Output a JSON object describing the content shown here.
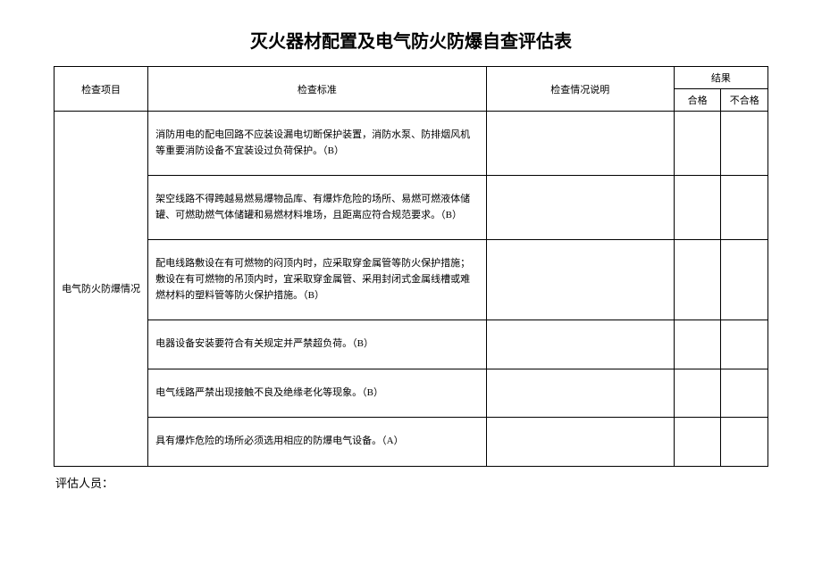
{
  "title": "灭火器材配置及电气防火防爆自查评估表",
  "header": {
    "item": "检查项目",
    "standard": "检查标准",
    "description": "检查情况说明",
    "result": "结果",
    "pass": "合格",
    "fail": "不合格"
  },
  "category": "电气防火防爆情况",
  "rows": [
    {
      "standard": "消防用电的配电回路不应装设漏电切断保护装置，消防水泵、防排烟风机等重要消防设备不宜装设过负荷保护。（B）",
      "description": "",
      "pass": "",
      "fail": ""
    },
    {
      "standard": "架空线路不得跨越易燃易爆物品库、有爆炸危险的场所、易燃可燃液体储罐、可燃助燃气体储罐和易燃材料堆场，且距离应符合规范要求。（B）",
      "description": "",
      "pass": "",
      "fail": ""
    },
    {
      "standard": "配电线路敷设在有可燃物的闷顶内时，应采取穿金属管等防火保护措施；敷设在有可燃物的吊顶内时，宜采取穿金属管、采用封闭式金属线槽或难燃材料的塑料管等防火保护措施。（B）",
      "description": "",
      "pass": "",
      "fail": ""
    },
    {
      "standard": "电器设备安装要符合有关规定并严禁超负荷。（B）",
      "description": "",
      "pass": "",
      "fail": ""
    },
    {
      "standard": "电气线路严禁出现接触不良及绝缘老化等现象。（B）",
      "description": "",
      "pass": "",
      "fail": ""
    },
    {
      "standard": "具有爆炸危险的场所必须选用相应的防爆电气设备。（A）",
      "description": "",
      "pass": "",
      "fail": ""
    }
  ],
  "assessor_label": "评估人员："
}
